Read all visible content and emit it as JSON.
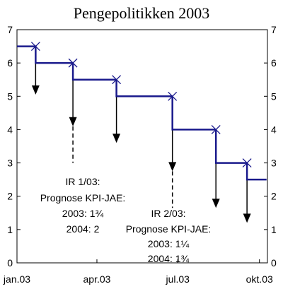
{
  "chart_data": {
    "type": "line",
    "title": "Pengepolitikken 2003",
    "ylim": [
      0,
      7
    ],
    "y_ticks": [
      "0",
      "1",
      "2",
      "3",
      "4",
      "5",
      "6",
      "7"
    ],
    "x_ticks": [
      {
        "label": "jan.03",
        "date": "2003-01-01"
      },
      {
        "label": "apr.03",
        "date": "2003-04-01"
      },
      {
        "label": "jul.03",
        "date": "2003-07-01"
      },
      {
        "label": "okt.03",
        "date": "2003-10-01"
      }
    ],
    "series": [
      {
        "type": "step",
        "color": "#1a1a8c",
        "points": [
          {
            "date": "2003-01-01",
            "value": 6.5
          },
          {
            "date": "2003-01-22",
            "value": 6.0
          },
          {
            "date": "2003-03-05",
            "value": 5.5
          },
          {
            "date": "2003-04-23",
            "value": 5.0
          },
          {
            "date": "2003-06-25",
            "value": 4.0
          },
          {
            "date": "2003-08-13",
            "value": 3.0
          },
          {
            "date": "2003-09-17",
            "value": 2.5
          },
          {
            "date": "2003-10-09",
            "value": 2.5
          }
        ]
      }
    ],
    "meeting_markers": [
      {
        "date": "2003-01-22",
        "value": 6.5
      },
      {
        "date": "2003-03-05",
        "value": 6.0
      },
      {
        "date": "2003-04-23",
        "value": 5.5
      },
      {
        "date": "2003-06-25",
        "value": 5.0
      },
      {
        "date": "2003-08-13",
        "value": 4.0
      },
      {
        "date": "2003-09-17",
        "value": 3.0
      }
    ],
    "arrows": [
      {
        "date": "2003-01-22",
        "from": 6.0,
        "to": 5.05
      },
      {
        "date": "2003-03-05",
        "from": 5.5,
        "to": 4.1
      },
      {
        "date": "2003-04-23",
        "from": 5.0,
        "to": 3.6
      },
      {
        "date": "2003-06-25",
        "from": 4.0,
        "to": 2.75
      },
      {
        "date": "2003-08-13",
        "from": 3.0,
        "to": 1.65
      },
      {
        "date": "2003-09-17",
        "from": 2.5,
        "to": 1.2
      }
    ],
    "dashed_lines": [
      {
        "date": "2003-03-05",
        "from": 4.1,
        "to": 3.0
      },
      {
        "date": "2003-06-25",
        "from": 2.75,
        "to": 1.65
      }
    ],
    "annotations": [
      {
        "lines": [
          "IR 1/03:",
          "Prognose KPI-JAE:",
          "2003:  1¾",
          "2004:  2"
        ]
      },
      {
        "lines": [
          "IR 2/03:",
          "Prognose KPI-JAE:",
          "2003: 1¼",
          "2004: 1¾"
        ]
      }
    ]
  }
}
